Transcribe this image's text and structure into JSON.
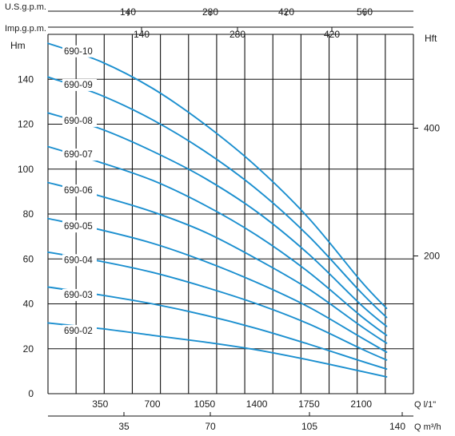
{
  "chart_data": {
    "type": "line",
    "title": "",
    "axes": {
      "x_main": {
        "label": "Q l/1\"",
        "ticks": [
          "350",
          "700",
          "1050",
          "1400",
          "1750",
          "2100"
        ],
        "range": [
          0,
          2450
        ]
      },
      "x_m3h": {
        "label": "Q m³/h",
        "ticks": [
          "35",
          "70",
          "105",
          "140"
        ]
      },
      "x_usgpm": {
        "label": "U.S.g.p.m.",
        "ticks": [
          "140",
          "280",
          "420",
          "560"
        ]
      },
      "x_impgpm": {
        "label": "Imp.g.p.m.",
        "ticks": [
          "140",
          "280",
          "420"
        ]
      },
      "y_left": {
        "label": "Hm",
        "ticks": [
          "0",
          "20",
          "40",
          "60",
          "80",
          "100",
          "120",
          "140"
        ],
        "range": [
          0,
          160
        ]
      },
      "y_right": {
        "label": "Hft",
        "ticks": [
          "200",
          "400"
        ]
      }
    },
    "grid": true,
    "line_color": "#1b8fcf",
    "series": [
      {
        "name": "690-02",
        "x": [
          0,
          350,
          700,
          1050,
          1400,
          1750,
          2100,
          2270
        ],
        "y": [
          31.5,
          29,
          26,
          23,
          19.5,
          15,
          10,
          7.5
        ]
      },
      {
        "name": "690-03",
        "x": [
          0,
          350,
          700,
          1050,
          1400,
          1750,
          2100,
          2270
        ],
        "y": [
          47.5,
          44,
          40,
          35,
          29,
          22,
          14.5,
          11
        ]
      },
      {
        "name": "690-04",
        "x": [
          0,
          350,
          700,
          1050,
          1400,
          1750,
          2100,
          2270
        ],
        "y": [
          63,
          59,
          54,
          47.5,
          40,
          31,
          20,
          15
        ]
      },
      {
        "name": "690-05",
        "x": [
          0,
          350,
          700,
          1050,
          1400,
          1750,
          2100,
          2270
        ],
        "y": [
          78,
          73,
          67,
          59,
          49.5,
          38.5,
          25,
          18.5
        ]
      },
      {
        "name": "690-06",
        "x": [
          0,
          350,
          700,
          1050,
          1400,
          1750,
          2100,
          2270
        ],
        "y": [
          94,
          88,
          81,
          72,
          60,
          46.5,
          30,
          22.5
        ]
      },
      {
        "name": "690-07",
        "x": [
          0,
          350,
          700,
          1050,
          1400,
          1750,
          2100,
          2270
        ],
        "y": [
          110,
          103,
          95,
          84,
          70.5,
          54,
          34.5,
          26
        ]
      },
      {
        "name": "690-08",
        "x": [
          0,
          350,
          700,
          1050,
          1400,
          1750,
          2100,
          2270
        ],
        "y": [
          125,
          118,
          108,
          96,
          81,
          62,
          39.5,
          30
        ]
      },
      {
        "name": "690-09",
        "x": [
          0,
          350,
          700,
          1050,
          1400,
          1750,
          2100,
          2270
        ],
        "y": [
          141,
          133,
          122,
          108,
          91,
          70,
          45,
          34
        ]
      },
      {
        "name": "690-10",
        "x": [
          0,
          350,
          700,
          1050,
          1400,
          1750,
          2100,
          2270
        ],
        "y": [
          156,
          148,
          136,
          120,
          101,
          78,
          50,
          38
        ]
      }
    ]
  }
}
